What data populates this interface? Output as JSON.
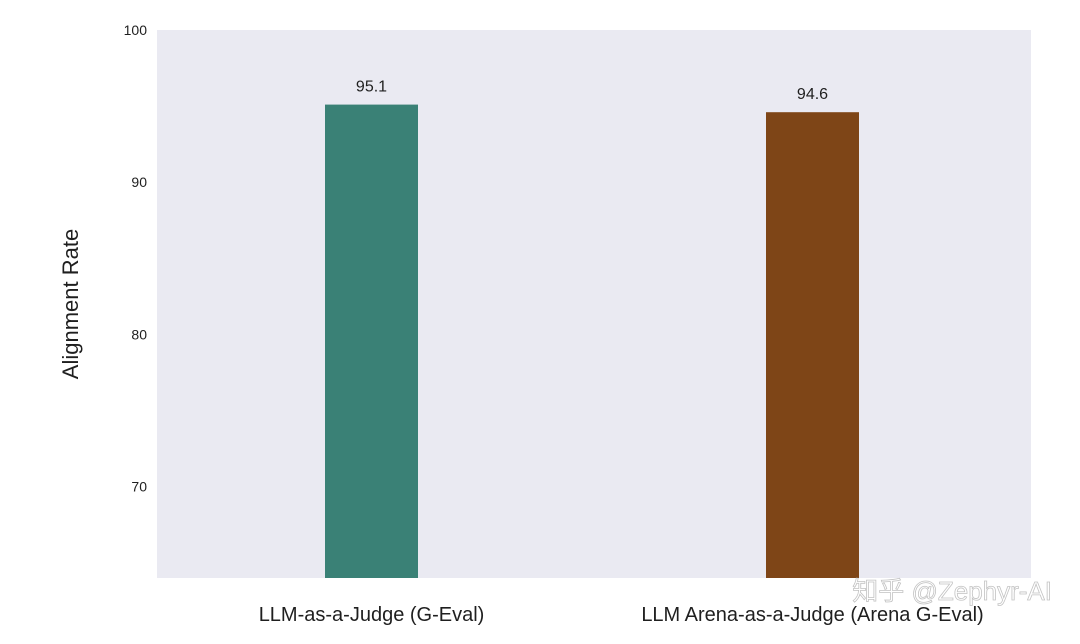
{
  "chart_data": {
    "type": "bar",
    "categories": [
      "LLM-as-a-Judge (G-Eval)",
      "LLM Arena-as-a-Judge (Arena G-Eval)"
    ],
    "values": [
      95.1,
      94.6
    ],
    "data_labels": [
      "95.1",
      "94.6"
    ],
    "colors": [
      "#3a8176",
      "#7e4517"
    ],
    "title": "",
    "xlabel": "",
    "ylabel": "Alignment Rate",
    "ylim": [
      64,
      100
    ],
    "yticks": [
      70,
      80,
      90,
      100
    ],
    "ytick_labels": [
      "70",
      "80",
      "90",
      "100"
    ],
    "grid": false,
    "plot_background": "#eaeaf2"
  },
  "watermark": {
    "text": "知乎 @Zephyr-AI"
  }
}
